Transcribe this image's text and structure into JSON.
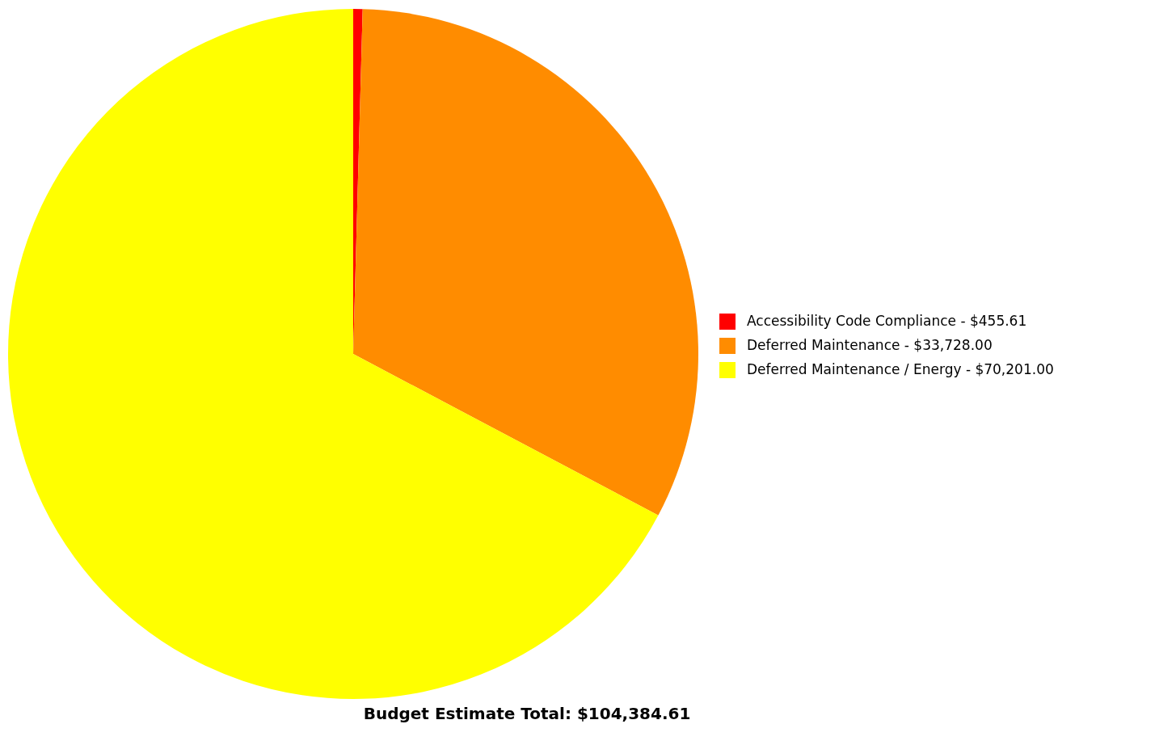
{
  "chart_data": {
    "type": "pie",
    "categories": [
      "Accessibility Code Compliance",
      "Deferred Maintenance",
      "Deferred Maintenance / Energy"
    ],
    "values": [
      455.61,
      33728.0,
      70201.0
    ],
    "value_labels": [
      "$455.61",
      "$33,728.00",
      "$70,201.00"
    ],
    "colors": [
      "#ff0000",
      "#ff8c00",
      "#ffff00"
    ],
    "legend": "right",
    "annotations": [
      "Budget Estimate Total:  $104,384.61"
    ]
  }
}
